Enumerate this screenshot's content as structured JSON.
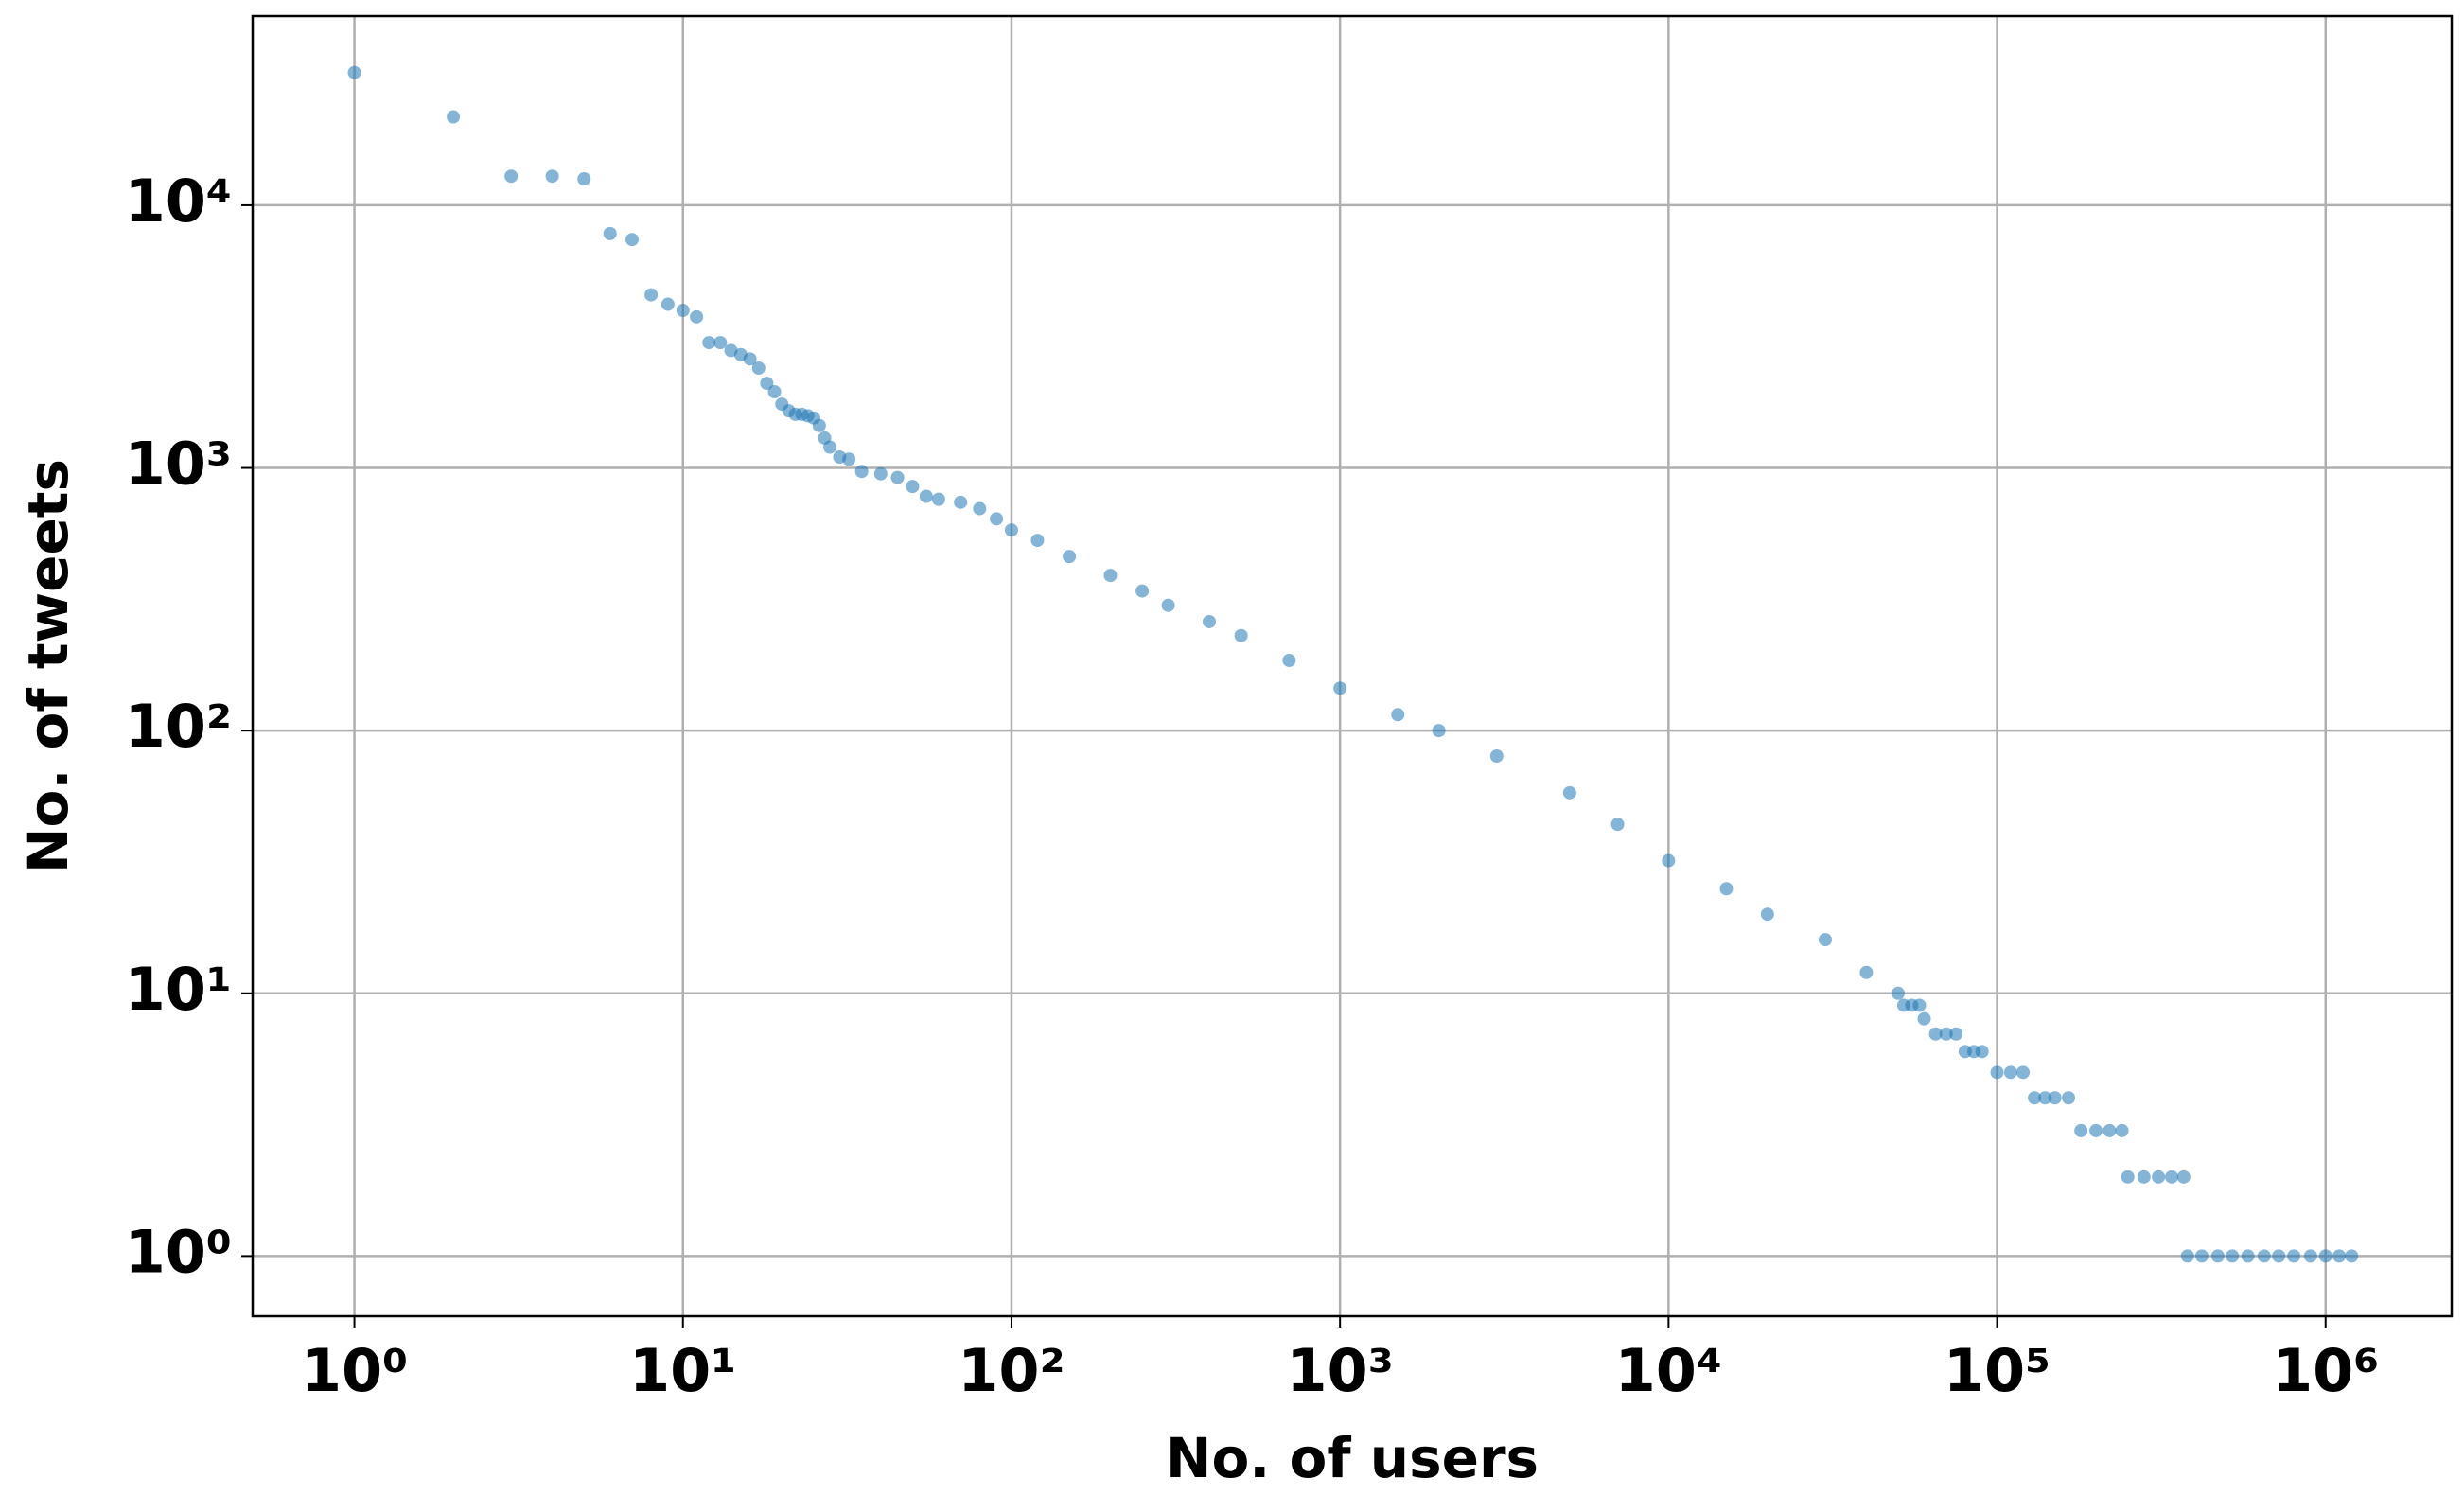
{
  "chart_data": {
    "type": "scatter",
    "xlabel": "No. of users",
    "ylabel": "No. of tweets",
    "xscale": "log",
    "yscale": "log",
    "grid": true,
    "color": "#1f77b4",
    "x": [
      1,
      2,
      3,
      4,
      5,
      6,
      7,
      8,
      9,
      10,
      11,
      12,
      13,
      14,
      15,
      16,
      17,
      18,
      19,
      20,
      21,
      22,
      23,
      24,
      25,
      26,
      27,
      28,
      30,
      32,
      35,
      40,
      45,
      50,
      55,
      60,
      70,
      80,
      90,
      100,
      120,
      150,
      200,
      250,
      300,
      400,
      500,
      700,
      1000,
      1500,
      2000,
      3000,
      5000,
      7000,
      10000,
      15000,
      20000,
      30000,
      40000,
      50000,
      52000,
      55000,
      58000,
      60000,
      65000,
      70000,
      75000,
      80000,
      85000,
      90000,
      100000,
      110000,
      120000,
      130000,
      140000,
      150000,
      165000,
      180000,
      200000,
      220000,
      240000,
      250000,
      280000,
      310000,
      340000,
      370000,
      380000,
      420000,
      470000,
      520000,
      580000,
      650000,
      720000,
      800000,
      900000,
      1000000,
      1100000,
      1200000
    ],
    "values": [
      32000,
      21700,
      12900,
      12900,
      12600,
      7800,
      7400,
      4560,
      4200,
      3980,
      3760,
      3000,
      3000,
      2800,
      2700,
      2600,
      2400,
      2100,
      1950,
      1750,
      1650,
      1600,
      1600,
      1580,
      1550,
      1450,
      1300,
      1200,
      1100,
      1080,
      970,
      950,
      920,
      850,
      780,
      760,
      740,
      700,
      640,
      580,
      530,
      460,
      390,
      340,
      300,
      260,
      230,
      185,
      145,
      115,
      100,
      80,
      58,
      44,
      32,
      25,
      20,
      16,
      12,
      10,
      9,
      9,
      9,
      8,
      7,
      7,
      7,
      6,
      6,
      6,
      5,
      5,
      5,
      4,
      4,
      4,
      4,
      3,
      3,
      3,
      3,
      2,
      2,
      2,
      2,
      2,
      1,
      1,
      1,
      1,
      1,
      1,
      1,
      1,
      1,
      1,
      1,
      1
    ],
    "xlim": [
      0.49,
      2420000
    ],
    "ylim": [
      0.59,
      52500
    ],
    "xticks": [
      {
        "value": 1,
        "label": "10⁰"
      },
      {
        "value": 10,
        "label": "10¹"
      },
      {
        "value": 100,
        "label": "10²"
      },
      {
        "value": 1000,
        "label": "10³"
      },
      {
        "value": 10000,
        "label": "10⁴"
      },
      {
        "value": 100000,
        "label": "10⁵"
      },
      {
        "value": 1000000,
        "label": "10⁶"
      }
    ],
    "yticks": [
      {
        "value": 1,
        "label": "10⁰"
      },
      {
        "value": 10,
        "label": "10¹"
      },
      {
        "value": 100,
        "label": "10²"
      },
      {
        "value": 1000,
        "label": "10³"
      },
      {
        "value": 10000,
        "label": "10⁴"
      }
    ]
  }
}
